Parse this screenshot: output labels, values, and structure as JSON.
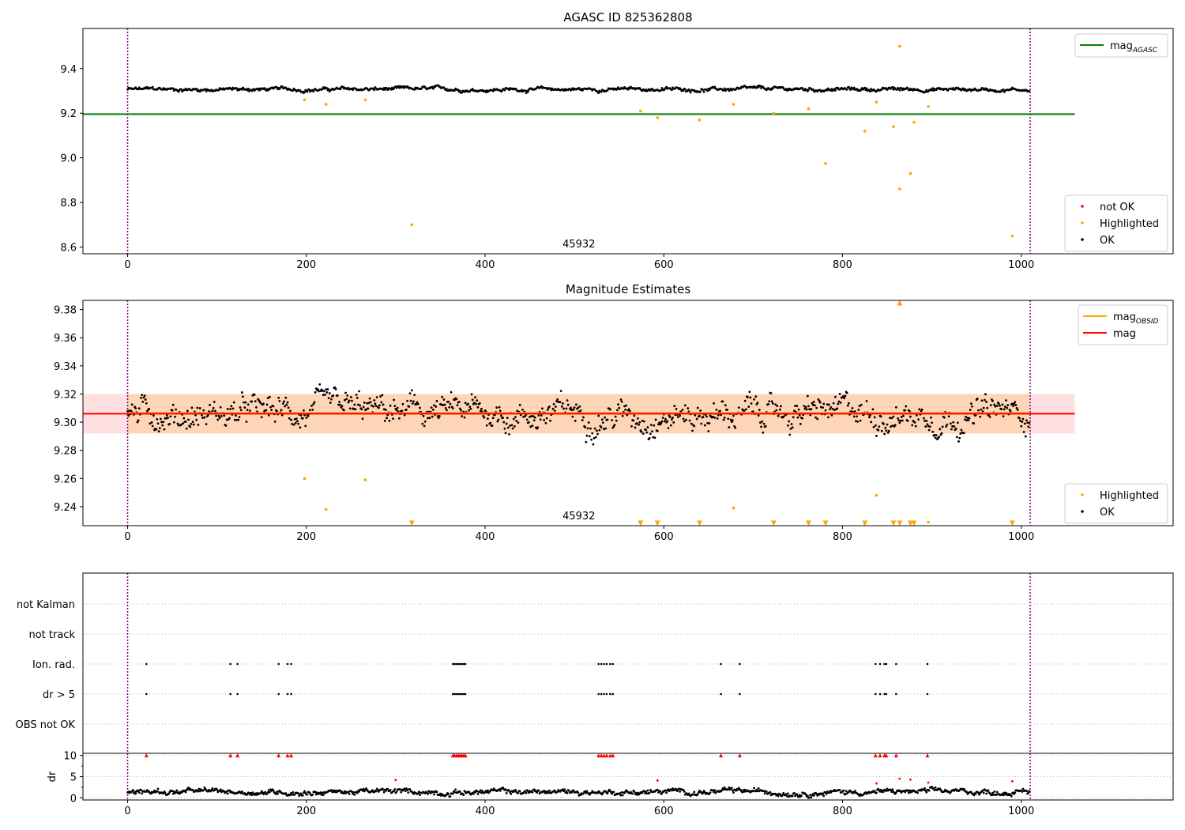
{
  "chart_data": [
    {
      "type": "scatter",
      "title": "AGASC ID 825362808",
      "xlabel": "",
      "ylabel": "",
      "xlim": [
        -50,
        1170
      ],
      "ylim": [
        8.57,
        9.58
      ],
      "xticks": [
        0,
        200,
        400,
        600,
        800,
        1000
      ],
      "yticks": [
        8.6,
        8.8,
        9.0,
        9.2,
        9.4
      ],
      "vlines": [
        0,
        1010
      ],
      "obsid_label": {
        "text": "45932",
        "x": 505
      },
      "mag_agasc": {
        "y": 9.196,
        "x0": -50,
        "x1": 1060
      },
      "legend_top": [
        {
          "name": "mag",
          "subscript": "AGASC",
          "color": "#008000",
          "kind": "line"
        }
      ],
      "legend_bottom": [
        {
          "name": "not OK",
          "color": "#ff0000",
          "kind": "point"
        },
        {
          "name": "Highlighted",
          "color": "#ffa500",
          "kind": "point"
        },
        {
          "name": "OK",
          "color": "#000000",
          "kind": "point"
        }
      ],
      "series": [
        {
          "name": "OK",
          "color": "#000000",
          "n": 1010,
          "baseline": 9.307,
          "spread": 0.012
        },
        {
          "name": "Highlighted",
          "color": "#ffa500",
          "x": [
            198,
            222,
            266,
            318,
            574,
            593,
            640,
            678,
            723,
            762,
            781,
            825,
            838,
            857,
            864,
            864,
            876,
            880,
            896,
            990
          ],
          "y": [
            9.26,
            9.24,
            9.26,
            8.7,
            9.21,
            9.18,
            9.17,
            9.24,
            9.2,
            9.22,
            8.975,
            9.12,
            9.25,
            9.14,
            9.5,
            8.86,
            8.93,
            9.16,
            9.23,
            8.65
          ]
        }
      ]
    },
    {
      "type": "scatter",
      "title": "Magnitude Estimates",
      "xlabel": "",
      "ylabel": "",
      "xlim": [
        -50,
        1170
      ],
      "ylim": [
        9.2265,
        9.3865
      ],
      "xticks": [
        0,
        200,
        400,
        600,
        800,
        1000
      ],
      "yticks": [
        9.24,
        9.26,
        9.28,
        9.3,
        9.32,
        9.34,
        9.36,
        9.38
      ],
      "vlines": [
        0,
        1010
      ],
      "obsid_label": {
        "text": "45932",
        "x": 505
      },
      "mag": {
        "y": 9.306,
        "band": [
          9.292,
          9.32
        ],
        "x0": -50,
        "x1": 1060,
        "color": "#ff0000"
      },
      "mag_obsid": {
        "y": 9.306,
        "band": [
          9.292,
          9.32
        ],
        "x0": 0,
        "x1": 1010,
        "color": "#ffa500"
      },
      "legend_top": [
        {
          "name": "mag",
          "subscript": "OBSID",
          "color": "#ffa500",
          "kind": "line"
        },
        {
          "name": "mag",
          "subscript": "",
          "color": "#ff0000",
          "kind": "line"
        }
      ],
      "legend_bottom": [
        {
          "name": "Highlighted",
          "color": "#ffa500",
          "kind": "point"
        },
        {
          "name": "OK",
          "color": "#000000",
          "kind": "point"
        }
      ],
      "series": [
        {
          "name": "OK",
          "color": "#000000",
          "n": 1010,
          "baseline": 9.306,
          "spread": 0.014
        },
        {
          "name": "Highlighted",
          "color": "#ffa500",
          "x": [
            198,
            222,
            266,
            678,
            838,
            896
          ],
          "y": [
            9.26,
            9.238,
            9.259,
            9.239,
            9.248,
            9.229
          ]
        },
        {
          "name": "Highlighted (below range)",
          "color": "#ffa500",
          "marker": "triangle-down",
          "x": [
            318,
            574,
            593,
            640,
            723,
            762,
            781,
            825,
            857,
            864,
            876,
            880,
            990
          ]
        },
        {
          "name": "Highlighted (above range)",
          "color": "#ffa500",
          "marker": "triangle-up",
          "x": [
            864
          ]
        }
      ]
    },
    {
      "type": "scatter",
      "title": "",
      "xlabel": "",
      "ylabel": "",
      "xlim": [
        -50,
        1170
      ],
      "categories": [
        "not Kalman",
        "not track",
        "Ion. rad.",
        "dr > 5",
        "OBS not OK"
      ],
      "vlines": [
        0,
        1010
      ],
      "series": [
        {
          "name": "Ion. rad.",
          "color": "#000000",
          "x": [
            21,
            115,
            123,
            169,
            179,
            183,
            364,
            366,
            368,
            370,
            372,
            374,
            376,
            378,
            527,
            530,
            533,
            536,
            540,
            543,
            664,
            685,
            837,
            842,
            847,
            849,
            860,
            895
          ]
        },
        {
          "name": "dr > 5",
          "color": "#000000",
          "x": [
            21,
            115,
            123,
            169,
            179,
            183,
            364,
            366,
            368,
            370,
            372,
            374,
            376,
            378,
            527,
            530,
            533,
            536,
            540,
            543,
            664,
            685,
            837,
            842,
            847,
            849,
            860,
            895
          ]
        }
      ]
    },
    {
      "type": "scatter",
      "title": "",
      "xlabel": "",
      "ylabel": "dr",
      "xlim": [
        -50,
        1170
      ],
      "ylim": [
        -0.5,
        10.5
      ],
      "xticks": [
        0,
        200,
        400,
        600,
        800,
        1000
      ],
      "yticks": [
        0,
        5,
        10
      ],
      "vlines": [
        0,
        1010
      ],
      "series": [
        {
          "name": "OK",
          "color": "#000000",
          "n": 1010,
          "baseline": 1.4,
          "spread": 0.9
        },
        {
          "name": "dr > 5 (clipped at 10)",
          "color": "#ff0000",
          "marker": "triangle-up",
          "x": [
            21,
            115,
            123,
            169,
            179,
            183,
            364,
            366,
            368,
            370,
            372,
            374,
            376,
            378,
            527,
            530,
            533,
            536,
            540,
            543,
            664,
            685,
            837,
            842,
            847,
            849,
            860,
            895
          ],
          "y": 10
        },
        {
          "name": "not OK",
          "color": "#ff0000",
          "x": [
            300,
            593,
            838,
            864,
            876,
            896,
            990
          ],
          "y": [
            4.2,
            4.1,
            3.4,
            4.5,
            4.3,
            3.6,
            3.9
          ]
        }
      ]
    }
  ]
}
